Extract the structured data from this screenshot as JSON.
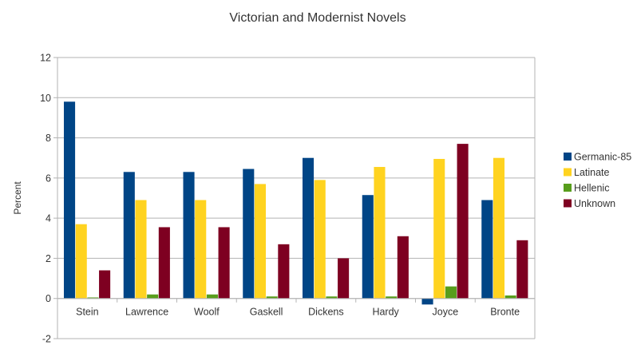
{
  "chart_data": {
    "type": "bar",
    "title": "Victorian and Modernist Novels",
    "xlabel": "",
    "ylabel": "Percent",
    "ylim": [
      -2,
      12
    ],
    "yticks": [
      -2,
      0,
      2,
      4,
      6,
      8,
      10,
      12
    ],
    "grid": true,
    "legend_position": "right",
    "categories": [
      "Stein",
      "Lawrence",
      "Woolf",
      "Gaskell",
      "Dickens",
      "Hardy",
      "Joyce",
      "Bronte"
    ],
    "series": [
      {
        "name": "Germanic-85",
        "color": "#004586",
        "values": [
          9.8,
          6.3,
          6.3,
          6.45,
          7.0,
          5.15,
          -0.3,
          4.9
        ]
      },
      {
        "name": "Latinate",
        "color": "#ffd320",
        "values": [
          3.7,
          4.9,
          4.9,
          5.7,
          5.9,
          6.55,
          6.95,
          7.0
        ]
      },
      {
        "name": "Hellenic",
        "color": "#579d1c",
        "values": [
          0.05,
          0.2,
          0.2,
          0.1,
          0.1,
          0.1,
          0.6,
          0.15
        ]
      },
      {
        "name": "Unknown",
        "color": "#7e0021",
        "values": [
          1.4,
          3.55,
          3.55,
          2.7,
          2.0,
          3.1,
          7.7,
          2.9
        ]
      }
    ]
  }
}
